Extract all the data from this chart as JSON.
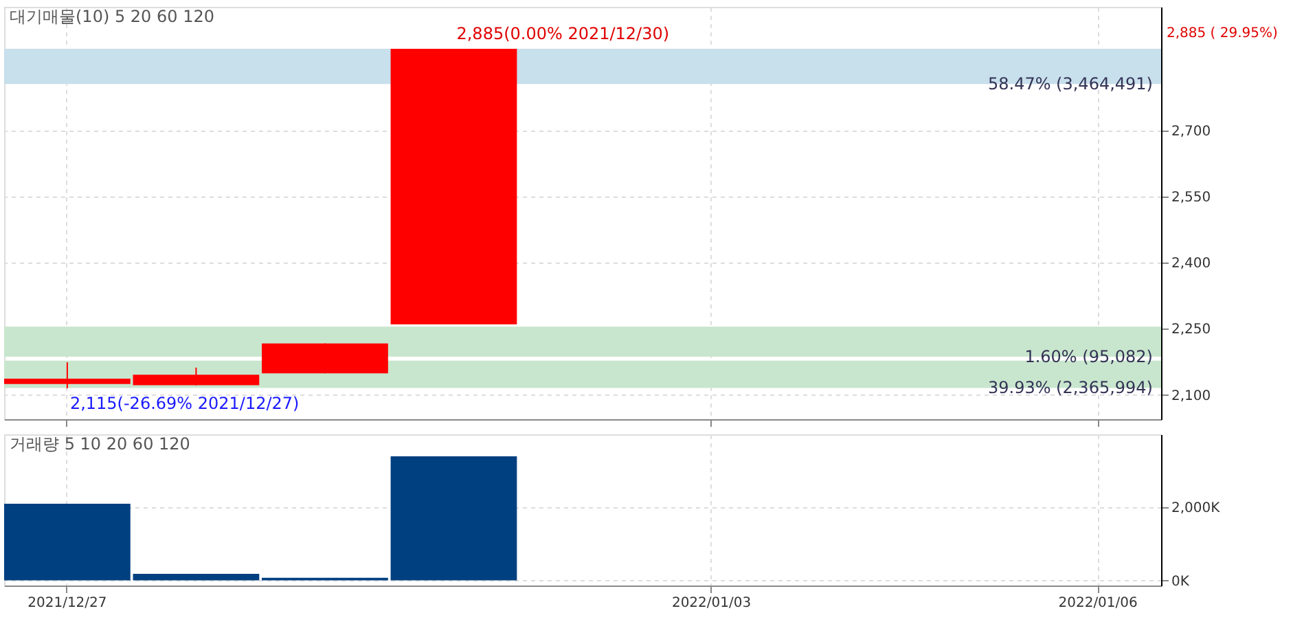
{
  "chart_data": [
    {
      "type": "candlestick",
      "categories": [
        "2021/12/27",
        null,
        null,
        null,
        null,
        "2022/01/03",
        null,
        null,
        "2022/01/06"
      ],
      "series": [
        {
          "color": "#ff0000",
          "ohlc": [
            [
              2125,
              2174,
              2115,
              2137
            ],
            [
              2122,
              2162,
              2122,
              2146
            ],
            [
              2149,
              2217,
              2149,
              2217
            ],
            [
              2260,
              2885,
              2260,
              2885
            ],
            null,
            null,
            null,
            null,
            null
          ]
        }
      ],
      "ylim": [
        2045,
        2980
      ],
      "yticks": [
        {
          "value": 2100,
          "label": "2,100"
        },
        {
          "value": 2250,
          "label": "2,250"
        },
        {
          "value": 2400,
          "label": "2,400"
        },
        {
          "value": 2550,
          "label": "2,550"
        },
        {
          "value": 2700,
          "label": "2,700"
        }
      ],
      "grid": true,
      "tick_labels": "y",
      "bands": [
        {
          "axis": "y",
          "from": 2805,
          "to": 2885,
          "label": "58.47% (3,464,491)",
          "color": "#c8dfec"
        },
        {
          "axis": "y",
          "from": 2116,
          "to": 2178,
          "label": "39.93% (2,365,994)",
          "color": "#c8e6cd"
        },
        {
          "axis": "y",
          "from": 2187,
          "to": 2255,
          "label": "1.60% (95,082)",
          "color": "#c8e6cd"
        }
      ],
      "annotations": [
        "대기매물(10)",
        "5",
        "20",
        "60",
        "120",
        {
          "text": "2,885(0.00% 2021/12/30)",
          "y": 2885
        },
        {
          "text": "2,115(-26.69% 2021/12/27)",
          "x": "2021/12/27",
          "y": 2115
        },
        "2,885 ( 29.95%)"
      ]
    },
    {
      "type": "bar",
      "categories": [
        "2021/12/27",
        null,
        null,
        null,
        null,
        "2022/01/03",
        null,
        null,
        "2022/01/06"
      ],
      "series": [
        {
          "color": "#004080",
          "values": [
            2100000,
            180000,
            70000,
            3400000,
            null,
            null,
            null,
            null,
            null
          ]
        }
      ],
      "ylim": [
        -140000,
        4000000
      ],
      "yticks": [
        {
          "value": 0,
          "label": "0K"
        },
        {
          "value": 2000000,
          "label": "2,000K"
        }
      ],
      "grid": true,
      "annotations": [
        "거래량",
        "5",
        "10",
        "20",
        "60",
        "120"
      ]
    }
  ]
}
